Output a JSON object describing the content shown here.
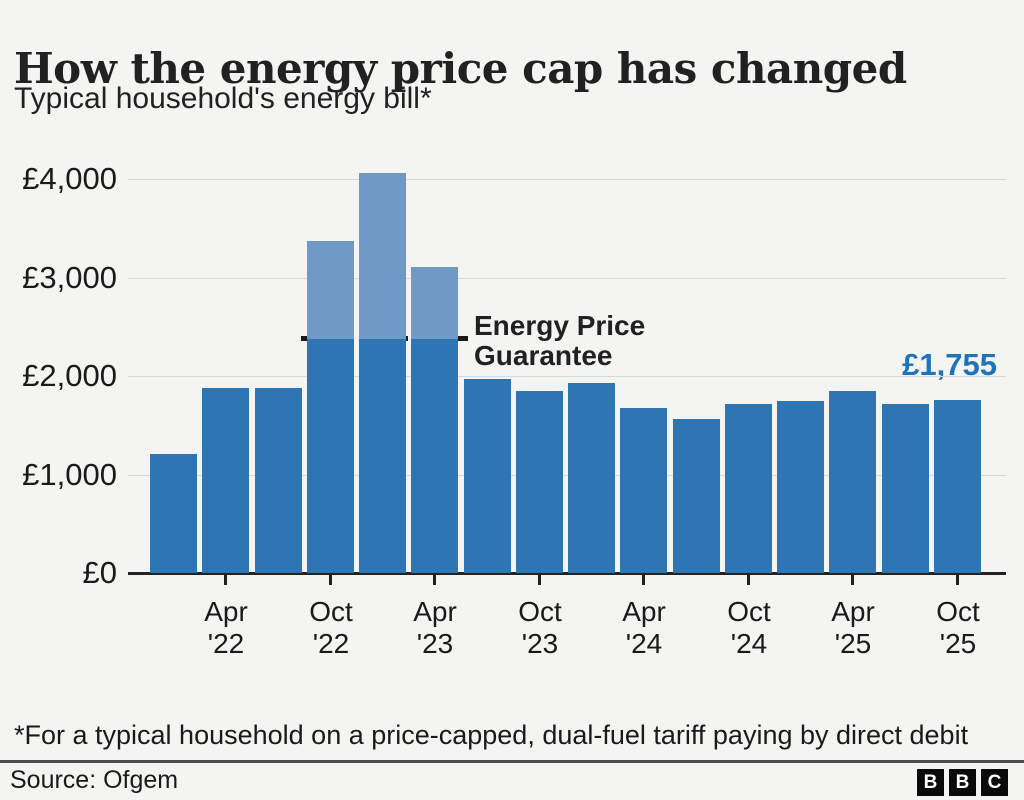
{
  "header": {
    "title": "How the energy price cap has changed",
    "subtitle": "Typical household's energy bill*"
  },
  "footer": {
    "footnote": "*For a typical household on a price-capped, dual-fuel tariff paying by direct debit",
    "source": "Source: Ofgem",
    "logo_letters": [
      "B",
      "B",
      "C"
    ]
  },
  "colors": {
    "background": "#f4f4f2",
    "bar": "#2d75b3",
    "bar_capped_excess": "#6f9ac8",
    "value_label": "#2073b8",
    "text": "#212121",
    "grid": "#d9d9d9",
    "axis": "#222222",
    "divider": "#4d4d4d"
  },
  "chart_data": {
    "type": "bar",
    "title": "How the energy price cap has changed",
    "subtitle": "Typical household's energy bill*",
    "unit": "GBP per year, typical household dual-fuel bill",
    "ylim": [
      0,
      4300
    ],
    "yticks": [
      0,
      1000,
      2000,
      3000,
      4000
    ],
    "ytick_labels": [
      "£0",
      "£1,000",
      "£2,000",
      "£3,000",
      "£4,000"
    ],
    "grid": "horizontal",
    "legend": "none",
    "bars": [
      {
        "period": "Jan '22",
        "value": 1210
      },
      {
        "period": "Apr '22",
        "value": 1875,
        "tick_label": "Apr '22"
      },
      {
        "period": "Jul '22",
        "value": 1875
      },
      {
        "period": "Oct '22",
        "value": 2380,
        "uncapped_value": 3375,
        "tick_label": "Oct '22"
      },
      {
        "period": "Jan '23",
        "value": 2380,
        "uncapped_value": 4060
      },
      {
        "period": "Apr '23",
        "value": 2380,
        "uncapped_value": 3110,
        "tick_label": "Apr '23"
      },
      {
        "period": "Jul '23",
        "value": 1970
      },
      {
        "period": "Oct '23",
        "value": 1845,
        "tick_label": "Oct '23"
      },
      {
        "period": "Jan '24",
        "value": 1935
      },
      {
        "period": "Apr '24",
        "value": 1680,
        "tick_label": "Apr '24"
      },
      {
        "period": "Jul '24",
        "value": 1560
      },
      {
        "period": "Oct '24",
        "value": 1715,
        "tick_label": "Oct '24"
      },
      {
        "period": "Jan '25",
        "value": 1745
      },
      {
        "period": "Apr '25",
        "value": 1850,
        "tick_label": "Apr '25"
      },
      {
        "period": "Jul '25",
        "value": 1720
      },
      {
        "period": "Oct '25",
        "value": 1755,
        "tick_label": "Oct '25"
      }
    ],
    "annotations": {
      "guarantee_line_value": 2380,
      "guarantee_label_line1": "Energy Price",
      "guarantee_label_line2": "Guarantee",
      "latest_value_label": "£1,755"
    }
  }
}
